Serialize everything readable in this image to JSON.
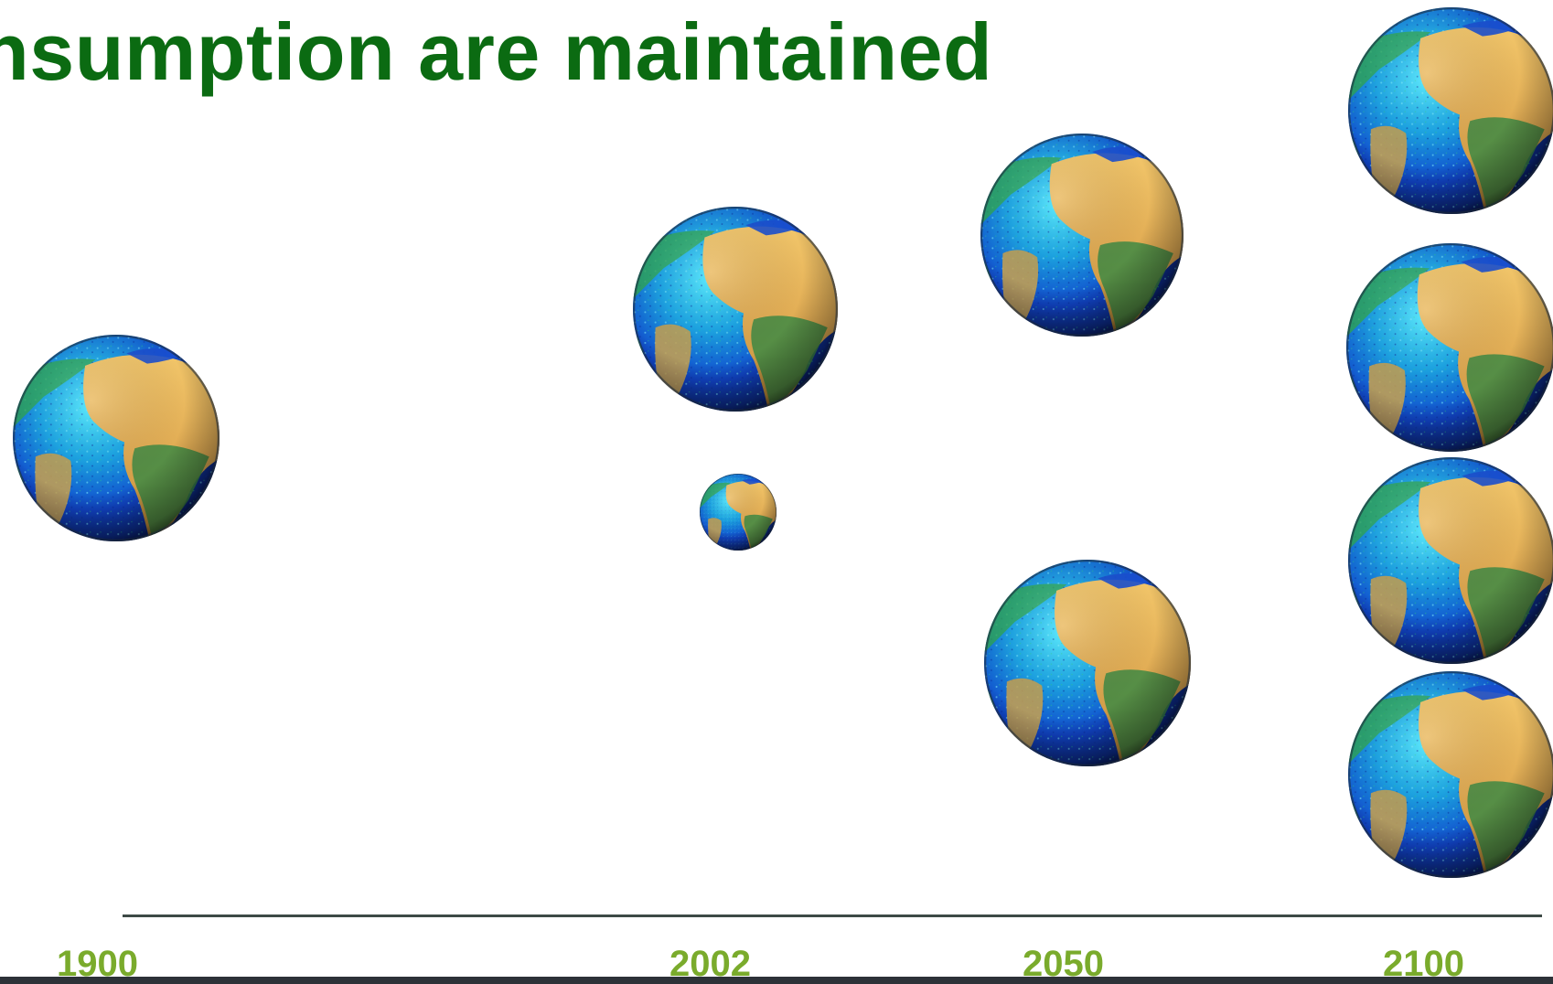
{
  "slide": {
    "title": "nsumption are maintained"
  },
  "timeline": {
    "years": [
      "1900",
      "2002",
      "2050",
      "2100"
    ]
  },
  "globe_counts": {
    "1900": 1,
    "2002": 2,
    "2050": 2,
    "2100": 4
  },
  "colors": {
    "title": "#0b6b12",
    "year_labels": "#7aab2c",
    "timeline_line": "#3d4a46"
  },
  "icons": {
    "globe": "earth-globe-icon"
  }
}
